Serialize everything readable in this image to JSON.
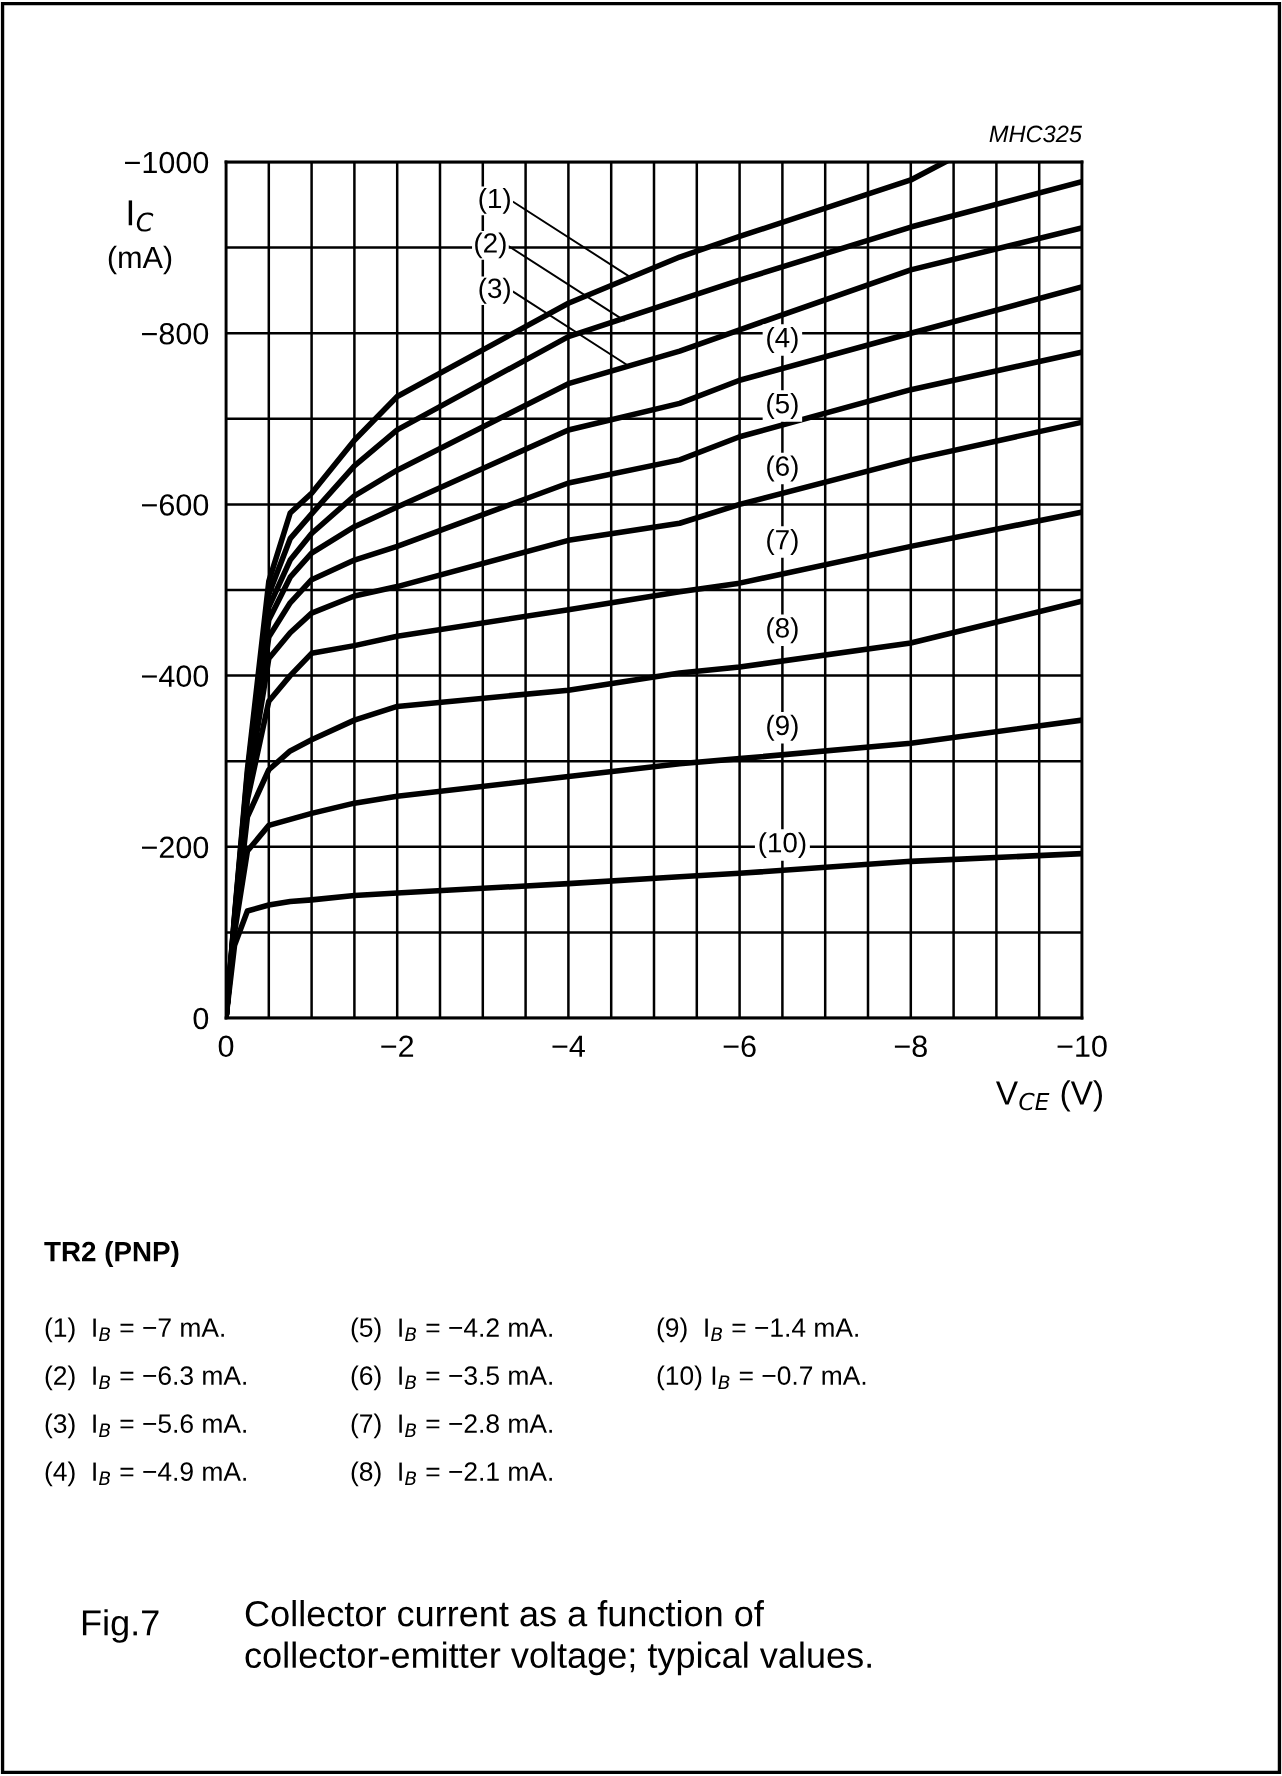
{
  "chart_data": {
    "type": "line",
    "xlabel": "V$_{CE}$ (V)",
    "ylabel": "I$_{C}$ (mA)",
    "xlim": [
      0,
      -10
    ],
    "ylim": [
      0,
      -1000
    ],
    "xticks": [
      0,
      {
        "value": -0.5,
        "label": null
      },
      {
        "value": -1,
        "label": null
      },
      {
        "value": -1.5,
        "label": null
      },
      {
        "value": -2,
        "label": "−2"
      },
      {
        "value": -2.5,
        "label": null
      },
      {
        "value": -3,
        "label": null
      },
      {
        "value": -3.5,
        "label": null
      },
      {
        "value": -4,
        "label": "−4"
      },
      {
        "value": -4.5,
        "label": null
      },
      {
        "value": -5,
        "label": null
      },
      {
        "value": -5.5,
        "label": null
      },
      {
        "value": -6,
        "label": "−6"
      },
      {
        "value": -6.5,
        "label": null
      },
      {
        "value": -7,
        "label": null
      },
      {
        "value": -7.5,
        "label": null
      },
      {
        "value": -8,
        "label": "−8"
      },
      {
        "value": -8.5,
        "label": null
      },
      {
        "value": -9,
        "label": null
      },
      {
        "value": -9.5,
        "label": null
      },
      {
        "value": -10,
        "label": "−10"
      }
    ],
    "yticks": [
      0,
      {
        "value": -100,
        "label": null
      },
      {
        "value": -200,
        "label": "−200"
      },
      {
        "value": -300,
        "label": null
      },
      {
        "value": -400,
        "label": "−400"
      },
      {
        "value": -500,
        "label": null
      },
      {
        "value": -600,
        "label": "−600"
      },
      {
        "value": -700,
        "label": null
      },
      {
        "value": -800,
        "label": "−800"
      },
      {
        "value": -900,
        "label": null
      },
      {
        "value": -1000,
        "label": "−1000"
      }
    ],
    "grid": true,
    "marker": "none",
    "line_style": "solid",
    "series": [
      {
        "color": "#000000",
        "x": [
          0,
          -0.1,
          -0.25,
          -0.5,
          -0.75,
          -1,
          -1.5,
          -2,
          -4,
          -5.3,
          -6,
          -8,
          -8.4
        ],
        "values": [
          0,
          -120,
          -290,
          -510,
          -590,
          -613,
          -675,
          -726,
          -835,
          -889,
          -913,
          -979,
          -1000
        ]
      },
      {
        "color": "#000000",
        "x": [
          0,
          -0.1,
          -0.25,
          -0.5,
          -0.75,
          -1,
          -1.5,
          -2,
          -4,
          -5.3,
          -6,
          -8,
          -10
        ],
        "values": [
          0,
          -118,
          -285,
          -495,
          -560,
          -589,
          -645,
          -687,
          -796,
          -839,
          -862,
          -924,
          -977
        ]
      },
      {
        "color": "#000000",
        "x": [
          0,
          -0.1,
          -0.25,
          -0.5,
          -0.75,
          -1,
          -1.5,
          -2,
          -4,
          -5.3,
          -6,
          -8,
          -10
        ],
        "values": [
          0,
          -116,
          -280,
          -480,
          -535,
          -566,
          -610,
          -640,
          -741,
          -779,
          -804,
          -874,
          -923
        ]
      },
      {
        "color": "#000000",
        "x": [
          0,
          -0.1,
          -0.25,
          -0.5,
          -0.75,
          -1,
          -1.5,
          -2,
          -4,
          -5.3,
          -6,
          -8,
          -10
        ],
        "values": [
          0,
          -114,
          -275,
          -465,
          -515,
          -543,
          -574,
          -597,
          -687,
          -718,
          -745,
          -800,
          -854
        ]
      },
      {
        "color": "#000000",
        "x": [
          0,
          -0.1,
          -0.25,
          -0.5,
          -0.75,
          -1,
          -1.5,
          -2,
          -4,
          -5.3,
          -6,
          -8,
          -10
        ],
        "values": [
          0,
          -112,
          -270,
          -445,
          -485,
          -512,
          -535,
          -551,
          -625,
          -652,
          -679,
          -734,
          -778
        ]
      },
      {
        "color": "#000000",
        "x": [
          0,
          -0.1,
          -0.25,
          -0.5,
          -0.75,
          -1,
          -1.5,
          -2,
          -4,
          -5.3,
          -6,
          -8,
          -10
        ],
        "values": [
          0,
          -110,
          -265,
          -420,
          -450,
          -473,
          -493,
          -504,
          -558,
          -578,
          -600,
          -652,
          -696
        ]
      },
      {
        "color": "#000000",
        "x": [
          0,
          -0.1,
          -0.25,
          -0.5,
          -0.75,
          -1,
          -1.5,
          -2,
          -4,
          -5.3,
          -6,
          -8,
          -10
        ],
        "values": [
          0,
          -108,
          -255,
          -370,
          -400,
          -426,
          -435,
          -446,
          -477,
          -498,
          -508,
          -551,
          -591
        ]
      },
      {
        "color": "#000000",
        "x": [
          0,
          -0.1,
          -0.25,
          -0.5,
          -0.75,
          -1,
          -1.5,
          -2,
          -4,
          -5.3,
          -6,
          -8,
          -10
        ],
        "values": [
          0,
          -105,
          -235,
          -290,
          -312,
          -325,
          -348,
          -364,
          -383,
          -403,
          -410,
          -438,
          -487
        ]
      },
      {
        "color": "#000000",
        "x": [
          0,
          -0.1,
          -0.25,
          -0.5,
          -0.75,
          -1,
          -1.5,
          -2,
          -4,
          -5.3,
          -6,
          -8,
          -10
        ],
        "values": [
          0,
          -100,
          -195,
          -225,
          -232,
          -239,
          -251,
          -259,
          -282,
          -297,
          -303,
          -321,
          -348
        ]
      },
      {
        "color": "#000000",
        "x": [
          0,
          -0.1,
          -0.25,
          -0.5,
          -0.75,
          -1,
          -1.5,
          -2,
          -4,
          -5.3,
          -6,
          -8,
          -10
        ],
        "values": [
          0,
          -85,
          -125,
          -132,
          -136,
          -138,
          -143,
          -146,
          -157,
          -165,
          -169,
          -183,
          -192
        ]
      }
    ],
    "annotations": [
      "MHC325",
      {
        "text": "(1)",
        "x": -4.7,
        "y": -867
      },
      {
        "text": "(2)",
        "x": -4.65,
        "y": -815
      },
      {
        "text": "(3)",
        "x": -4.7,
        "y": -762
      },
      {
        "text": "(4)",
        "x": -6.5,
        "y": -792
      },
      {
        "text": "(5)",
        "x": -6.5,
        "y": -715
      },
      {
        "text": "(6)",
        "x": -6.5,
        "y": -642
      },
      {
        "text": "(7)",
        "x": -6.5,
        "y": -556
      },
      {
        "text": "(8)",
        "x": -6.5,
        "y": -453
      },
      {
        "text": "(9)",
        "x": -6.5,
        "y": -339
      },
      {
        "text": "(10)",
        "x": -6.5,
        "y": -202
      },
      "TR2 (PNP)",
      "(1)  I$_{B}$ = −7 mA.",
      "(2)  I$_{B}$ = −6.3 mA.",
      "(3)  I$_{B}$ = −5.6 mA.",
      "(4)  I$_{B}$ = −4.9 mA.",
      "(5)  I$_{B}$ = −4.2 mA.",
      "(6)  I$_{B}$ = −3.5 mA.",
      "(7)  I$_{B}$ = −2.8 mA.",
      "(8)  I$_{B}$ = −2.1 mA.",
      "(9)  I$_{B}$ = −1.4 mA.",
      "(10) I$_{B}$ = −0.7 mA.",
      "Fig.7",
      "Collector current as a function of collector-emitter voltage; typical values."
    ]
  }
}
